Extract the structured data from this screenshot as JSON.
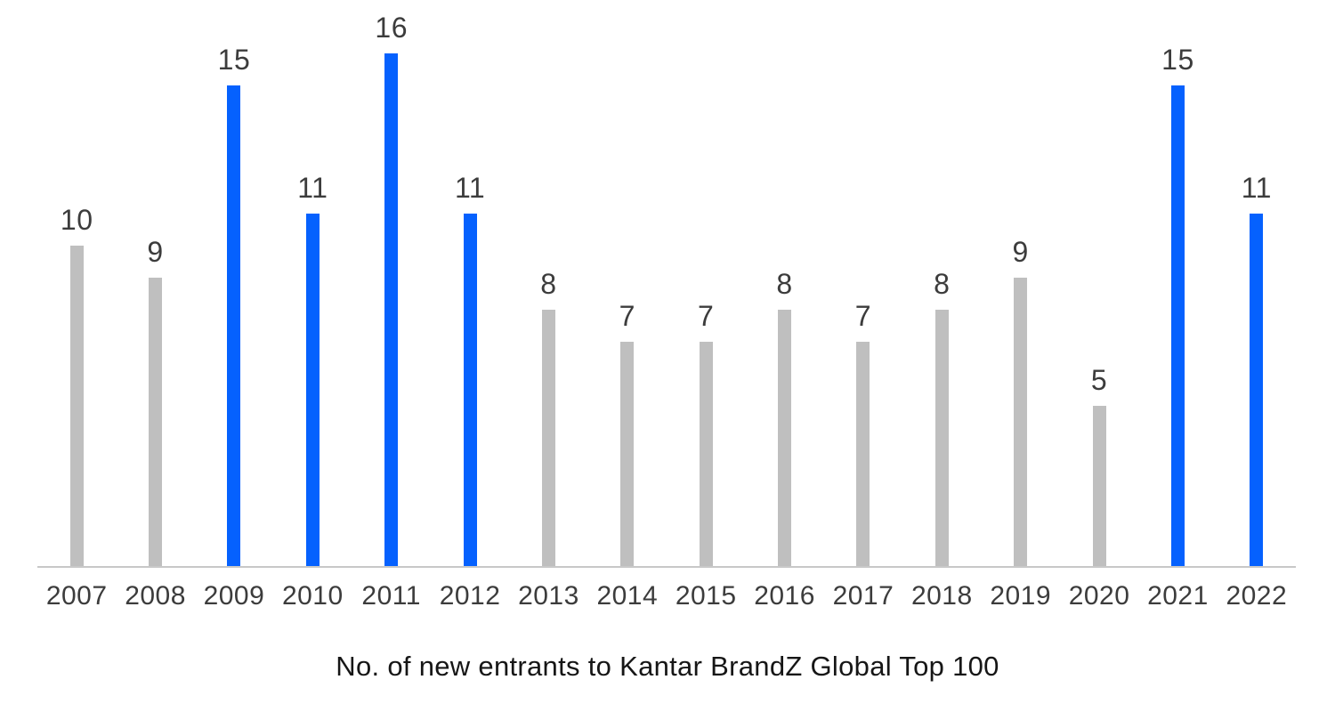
{
  "chart_data": {
    "type": "bar",
    "title": "No. of new entrants to Kantar BrandZ Global Top 100",
    "categories": [
      "2007",
      "2008",
      "2009",
      "2010",
      "2011",
      "2012",
      "2013",
      "2014",
      "2015",
      "2016",
      "2017",
      "2018",
      "2019",
      "2020",
      "2021",
      "2022"
    ],
    "values": [
      10,
      9,
      15,
      11,
      16,
      11,
      8,
      7,
      7,
      8,
      7,
      8,
      9,
      5,
      15,
      11
    ],
    "highlighted_categories": [
      "2009",
      "2010",
      "2011",
      "2012",
      "2021",
      "2022"
    ],
    "value_labels": "above-bars",
    "xlabel": "",
    "ylabel": "",
    "ylim": [
      0,
      16
    ],
    "grid": false,
    "legend": "none"
  },
  "colors": {
    "bar_highlight": "#0561FE",
    "bar_default": "#BFBFBF",
    "axis_line": "#C8C8C8",
    "tick_label": "#3C3C3C",
    "value_label": "#3C3C3C",
    "title": "#161616",
    "background": "#FFFFFF"
  }
}
